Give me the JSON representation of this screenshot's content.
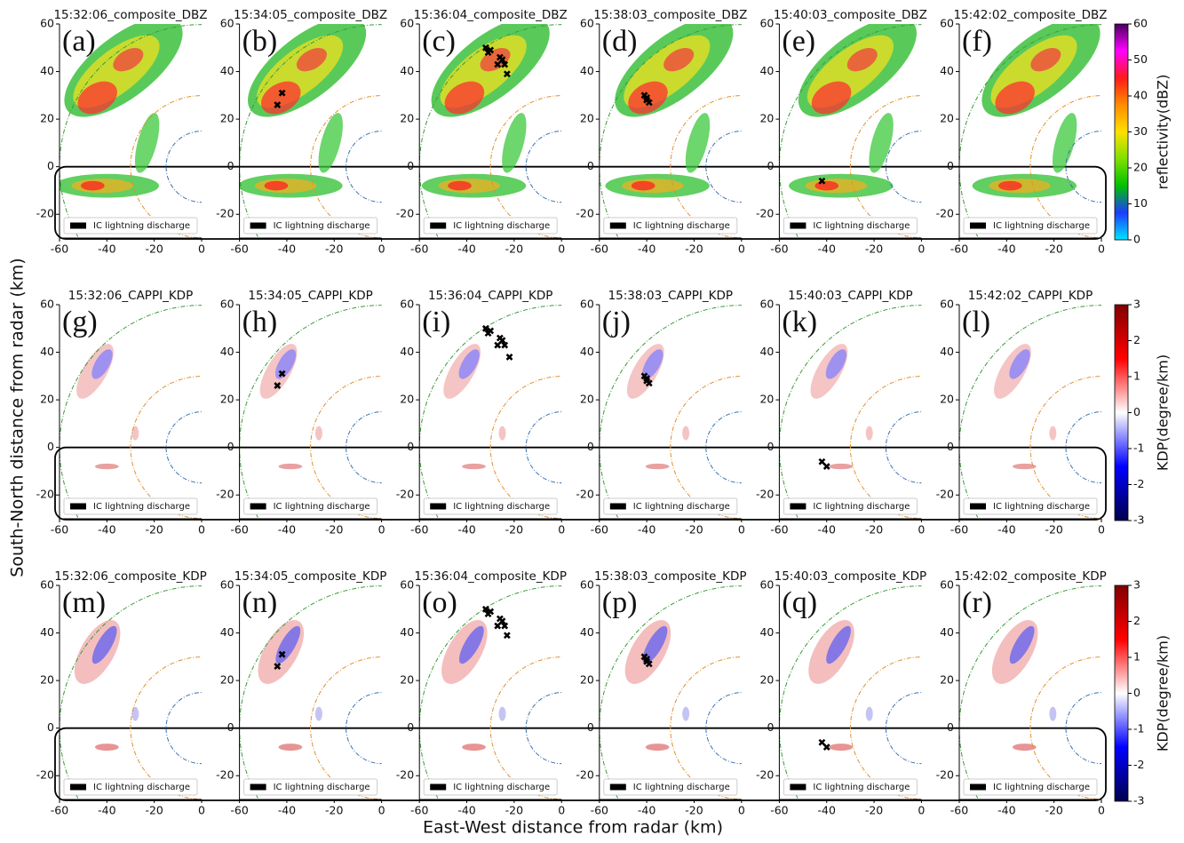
{
  "figure": {
    "xlabel": "East-West distance from radar (km)",
    "ylabel": "South-North distance from radar (km)"
  },
  "colorbars": [
    {
      "label": "reflectivity(dBZ)",
      "lim": [
        0,
        60
      ],
      "ticks": [
        0,
        10,
        20,
        30,
        40,
        50,
        60
      ],
      "colors": [
        "#00e5ff",
        "#1c3cff",
        "#00c000",
        "#7fe000",
        "#ffe000",
        "#ff8c00",
        "#ff1a1a",
        "#ff00ff",
        "#4a0060"
      ]
    },
    {
      "label": "KDP(degree/km)",
      "lim": [
        -3,
        3
      ],
      "ticks": [
        -3,
        -2,
        -1,
        0,
        1,
        2,
        3
      ],
      "colors": [
        "#00004c",
        "#0000ff",
        "#ffffff",
        "#ff0000",
        "#800000"
      ]
    },
    {
      "label": "KDP(degree/km)",
      "lim": [
        -3,
        3
      ],
      "ticks": [
        -3,
        -2,
        -1,
        0,
        1,
        2,
        3
      ],
      "colors": [
        "#00004c",
        "#0000ff",
        "#ffffff",
        "#ff0000",
        "#800000"
      ]
    }
  ],
  "chart_data": [
    {
      "type": "scatter",
      "title": "15:32:06_composite_DBZ",
      "label": "(a)",
      "xlim": [
        -60,
        0
      ],
      "ylim": [
        -30,
        60
      ],
      "xticks": [
        -60,
        -40,
        -20,
        0
      ],
      "yticks": [
        -20,
        0,
        20,
        40,
        60
      ],
      "series": [
        {
          "name": "IC lightning discharge",
          "color": "#000000",
          "x": [],
          "y": []
        }
      ]
    },
    {
      "type": "scatter",
      "title": "15:34:05_composite_DBZ",
      "label": "(b)",
      "xlim": [
        -60,
        0
      ],
      "ylim": [
        -30,
        60
      ],
      "xticks": [
        -60,
        -40,
        -20,
        0
      ],
      "yticks": [
        -20,
        0,
        20,
        40,
        60
      ],
      "series": [
        {
          "name": "IC lightning discharge",
          "color": "#000000",
          "x": [
            -42,
            -44
          ],
          "y": [
            31,
            26
          ]
        }
      ]
    },
    {
      "type": "scatter",
      "title": "15:36:04_composite_DBZ",
      "label": "(c)",
      "xlim": [
        -60,
        0
      ],
      "ylim": [
        -30,
        60
      ],
      "xticks": [
        -60,
        -40,
        -20,
        0
      ],
      "yticks": [
        -20,
        0,
        20,
        40,
        60
      ],
      "series": [
        {
          "name": "IC lightning discharge",
          "color": "#000000",
          "x": [
            -32,
            -30,
            -31,
            -26,
            -25,
            -27,
            -24,
            -23
          ],
          "y": [
            50,
            49,
            48,
            46,
            45,
            43,
            43,
            39
          ]
        }
      ]
    },
    {
      "type": "scatter",
      "title": "15:38:03_composite_DBZ",
      "label": "(d)",
      "xlim": [
        -60,
        0
      ],
      "ylim": [
        -30,
        60
      ],
      "xticks": [
        -60,
        -40,
        -20,
        0
      ],
      "yticks": [
        -20,
        0,
        20,
        40,
        60
      ],
      "series": [
        {
          "name": "IC lightning discharge",
          "color": "#000000",
          "x": [
            -40,
            -40,
            -39,
            -41
          ],
          "y": [
            29,
            28,
            27,
            30
          ]
        }
      ]
    },
    {
      "type": "scatter",
      "title": "15:40:03_composite_DBZ",
      "label": "(e)",
      "xlim": [
        -60,
        0
      ],
      "ylim": [
        -30,
        60
      ],
      "xticks": [
        -60,
        -40,
        -20,
        0
      ],
      "yticks": [
        -20,
        0,
        20,
        40,
        60
      ],
      "series": [
        {
          "name": "IC lightning discharge",
          "color": "#000000",
          "x": [
            -42
          ],
          "y": [
            -6
          ]
        }
      ]
    },
    {
      "type": "scatter",
      "title": "15:42:02_composite_DBZ",
      "label": "(f)",
      "xlim": [
        -60,
        0
      ],
      "ylim": [
        -30,
        60
      ],
      "xticks": [
        -60,
        -40,
        -20,
        0
      ],
      "yticks": [
        -20,
        0,
        20,
        40,
        60
      ],
      "series": [
        {
          "name": "IC lightning discharge",
          "color": "#000000",
          "x": [],
          "y": []
        }
      ]
    },
    {
      "type": "scatter",
      "title": "15:32:06_CAPPI_KDP",
      "label": "(g)",
      "xlim": [
        -60,
        0
      ],
      "ylim": [
        -30,
        60
      ],
      "xticks": [
        -60,
        -40,
        -20,
        0
      ],
      "yticks": [
        -20,
        0,
        20,
        40,
        60
      ],
      "series": [
        {
          "name": "IC lightning discharge",
          "color": "#000000",
          "x": [],
          "y": []
        }
      ]
    },
    {
      "type": "scatter",
      "title": "15:34:05_CAPPI_KDP",
      "label": "(h)",
      "xlim": [
        -60,
        0
      ],
      "ylim": [
        -30,
        60
      ],
      "xticks": [
        -60,
        -40,
        -20,
        0
      ],
      "yticks": [
        -20,
        0,
        20,
        40,
        60
      ],
      "series": [
        {
          "name": "IC lightning discharge",
          "color": "#000000",
          "x": [
            -42,
            -44
          ],
          "y": [
            31,
            26
          ]
        }
      ]
    },
    {
      "type": "scatter",
      "title": "15:36:04_CAPPI_KDP",
      "label": "(i)",
      "xlim": [
        -60,
        0
      ],
      "ylim": [
        -30,
        60
      ],
      "xticks": [
        -60,
        -40,
        -20,
        0
      ],
      "yticks": [
        -20,
        0,
        20,
        40,
        60
      ],
      "series": [
        {
          "name": "IC lightning discharge",
          "color": "#000000",
          "x": [
            -32,
            -30,
            -31,
            -26,
            -25,
            -27,
            -24,
            -22
          ],
          "y": [
            50,
            49,
            48,
            46,
            45,
            43,
            43,
            38
          ]
        }
      ]
    },
    {
      "type": "scatter",
      "title": "15:38:03_CAPPI_KDP",
      "label": "(j)",
      "xlim": [
        -60,
        0
      ],
      "ylim": [
        -30,
        60
      ],
      "xticks": [
        -60,
        -40,
        -20,
        0
      ],
      "yticks": [
        -20,
        0,
        20,
        40,
        60
      ],
      "series": [
        {
          "name": "IC lightning discharge",
          "color": "#000000",
          "x": [
            -40,
            -40,
            -39,
            -41
          ],
          "y": [
            29,
            28,
            27,
            30
          ]
        }
      ]
    },
    {
      "type": "scatter",
      "title": "15:40:03_CAPPI_KDP",
      "label": "(k)",
      "xlim": [
        -60,
        0
      ],
      "ylim": [
        -30,
        60
      ],
      "xticks": [
        -60,
        -40,
        -20,
        0
      ],
      "yticks": [
        -20,
        0,
        20,
        40,
        60
      ],
      "series": [
        {
          "name": "IC lightning discharge",
          "color": "#000000",
          "x": [
            -42,
            -40
          ],
          "y": [
            -6,
            -8
          ]
        }
      ]
    },
    {
      "type": "scatter",
      "title": "15:42:02_CAPPI_KDP",
      "label": "(l)",
      "xlim": [
        -60,
        0
      ],
      "ylim": [
        -30,
        60
      ],
      "xticks": [
        -60,
        -40,
        -20,
        0
      ],
      "yticks": [
        -20,
        0,
        20,
        40,
        60
      ],
      "series": [
        {
          "name": "IC lightning discharge",
          "color": "#000000",
          "x": [],
          "y": []
        }
      ]
    },
    {
      "type": "scatter",
      "title": "15:32:06_composite_KDP",
      "label": "(m)",
      "xlim": [
        -60,
        0
      ],
      "ylim": [
        -30,
        60
      ],
      "xticks": [
        -60,
        -40,
        -20,
        0
      ],
      "yticks": [
        -20,
        0,
        20,
        40,
        60
      ],
      "series": [
        {
          "name": "IC lightning discharge",
          "color": "#000000",
          "x": [],
          "y": []
        }
      ]
    },
    {
      "type": "scatter",
      "title": "15:34:05_composite_KDP",
      "label": "(n)",
      "xlim": [
        -60,
        0
      ],
      "ylim": [
        -30,
        60
      ],
      "xticks": [
        -60,
        -40,
        -20,
        0
      ],
      "yticks": [
        -20,
        0,
        20,
        40,
        60
      ],
      "series": [
        {
          "name": "IC lightning discharge",
          "color": "#000000",
          "x": [
            -42,
            -44
          ],
          "y": [
            31,
            26
          ]
        }
      ]
    },
    {
      "type": "scatter",
      "title": "15:36:04_composite_KDP",
      "label": "(o)",
      "xlim": [
        -60,
        0
      ],
      "ylim": [
        -30,
        60
      ],
      "xticks": [
        -60,
        -40,
        -20,
        0
      ],
      "yticks": [
        -20,
        0,
        20,
        40,
        60
      ],
      "series": [
        {
          "name": "IC lightning discharge",
          "color": "#000000",
          "x": [
            -32,
            -30,
            -31,
            -26,
            -25,
            -27,
            -24,
            -23
          ],
          "y": [
            50,
            49,
            48,
            46,
            45,
            43,
            43,
            39
          ]
        }
      ]
    },
    {
      "type": "scatter",
      "title": "15:38:03_composite_KDP",
      "label": "(p)",
      "xlim": [
        -60,
        0
      ],
      "ylim": [
        -30,
        60
      ],
      "xticks": [
        -60,
        -40,
        -20,
        0
      ],
      "yticks": [
        -20,
        0,
        20,
        40,
        60
      ],
      "series": [
        {
          "name": "IC lightning discharge",
          "color": "#000000",
          "x": [
            -40,
            -40,
            -39,
            -41
          ],
          "y": [
            29,
            28,
            27,
            30
          ]
        }
      ]
    },
    {
      "type": "scatter",
      "title": "15:40:03_composite_KDP",
      "label": "(q)",
      "xlim": [
        -60,
        0
      ],
      "ylim": [
        -30,
        60
      ],
      "xticks": [
        -60,
        -40,
        -20,
        0
      ],
      "yticks": [
        -20,
        0,
        20,
        40,
        60
      ],
      "series": [
        {
          "name": "IC lightning discharge",
          "color": "#000000",
          "x": [
            -42,
            -40
          ],
          "y": [
            -6,
            -8
          ]
        }
      ]
    },
    {
      "type": "scatter",
      "title": "15:42:02_composite_KDP",
      "label": "(r)",
      "xlim": [
        -60,
        0
      ],
      "ylim": [
        -30,
        60
      ],
      "xticks": [
        -60,
        -40,
        -20,
        0
      ],
      "yticks": [
        -20,
        0,
        20,
        40,
        60
      ],
      "series": [
        {
          "name": "IC lightning discharge",
          "color": "#000000",
          "x": [],
          "y": []
        }
      ]
    }
  ]
}
